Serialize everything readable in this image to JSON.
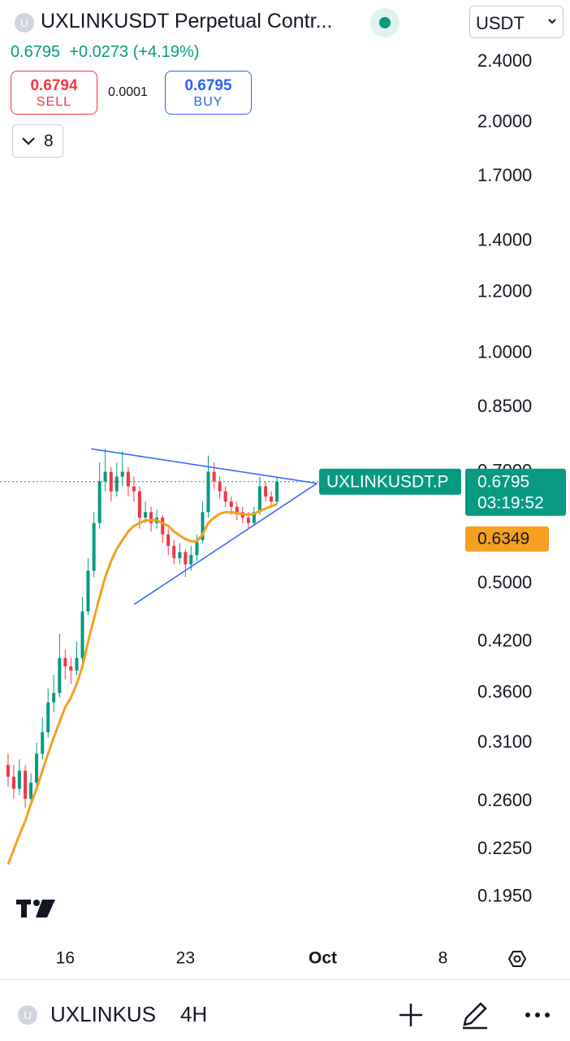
{
  "header": {
    "icon_letter": "U",
    "title": "UXLINKUSDT Perpetual Contr...",
    "currency": "USDT",
    "price": "0.6795",
    "change": "+0.0273",
    "change_pct": "(+4.19%)",
    "sell_price": "0.6794",
    "sell_label": "SELL",
    "spread": "0.0001",
    "buy_price": "0.6795",
    "buy_label": "BUY",
    "indicator_count": "8"
  },
  "bottom_bar": {
    "symbol": "UXLINKUS",
    "interval": "4H"
  },
  "chart_data": {
    "type": "candlestick",
    "log_scale": true,
    "xlim": [
      12.2,
      45.4
    ],
    "ylim": [
      0.17,
      2.89
    ],
    "xticks": [
      16,
      23,
      {
        "value": 31,
        "label": "Oct"
      },
      {
        "value": 38,
        "label": "8"
      }
    ],
    "yticks": [
      {
        "value": 2.4,
        "label": "2.4000"
      },
      {
        "value": 2.0,
        "label": "2.0000"
      },
      {
        "value": 1.7,
        "label": "1.7000"
      },
      {
        "value": 1.4,
        "label": "1.4000"
      },
      {
        "value": 1.2,
        "label": "1.2000"
      },
      {
        "value": 1.0,
        "label": "1.0000"
      },
      {
        "value": 0.85,
        "label": "0.8500"
      },
      {
        "value": 0.7,
        "label": "0.7000"
      },
      {
        "value": 0.5,
        "label": "0.5000"
      },
      {
        "value": 0.42,
        "label": "0.4200"
      },
      {
        "value": 0.36,
        "label": "0.3600"
      },
      {
        "value": 0.31,
        "label": "0.3100"
      },
      {
        "value": 0.26,
        "label": "0.2600"
      },
      {
        "value": 0.225,
        "label": "0.2250"
      },
      {
        "value": 0.195,
        "label": "0.1950"
      }
    ],
    "up_color": "#089981",
    "down_color": "#f23645",
    "x": [
      12.67,
      13.0,
      13.33,
      13.67,
      14.0,
      14.33,
      14.67,
      15.0,
      15.33,
      15.67,
      16.0,
      16.33,
      16.67,
      17.0,
      17.33,
      17.67,
      18.0,
      18.33,
      18.67,
      19.0,
      19.33,
      19.67,
      20.0,
      20.33,
      20.67,
      21.0,
      21.33,
      21.67,
      22.0,
      22.33,
      22.67,
      23.0,
      23.33,
      23.67,
      24.0,
      24.33,
      24.67,
      25.0,
      25.33,
      25.67,
      26.0,
      26.33,
      26.67,
      27.0,
      27.33,
      27.67,
      28.0,
      28.33
    ],
    "open": [
      0.29,
      0.28,
      0.27,
      0.285,
      0.262,
      0.275,
      0.3,
      0.32,
      0.35,
      0.36,
      0.4,
      0.39,
      0.385,
      0.4,
      0.46,
      0.52,
      0.6,
      0.68,
      0.7,
      0.66,
      0.69,
      0.7,
      0.67,
      0.66,
      0.61,
      0.62,
      0.6,
      0.61,
      0.58,
      0.56,
      0.54,
      0.55,
      0.53,
      0.545,
      0.57,
      0.62,
      0.7,
      0.68,
      0.66,
      0.64,
      0.63,
      0.62,
      0.61,
      0.6,
      0.62,
      0.67,
      0.65,
      0.64
    ],
    "high": [
      0.3,
      0.29,
      0.295,
      0.29,
      0.283,
      0.31,
      0.335,
      0.365,
      0.38,
      0.43,
      0.41,
      0.4,
      0.42,
      0.48,
      0.54,
      0.62,
      0.72,
      0.75,
      0.71,
      0.72,
      0.745,
      0.71,
      0.69,
      0.67,
      0.64,
      0.63,
      0.625,
      0.615,
      0.59,
      0.57,
      0.565,
      0.555,
      0.56,
      0.58,
      0.64,
      0.735,
      0.72,
      0.69,
      0.67,
      0.65,
      0.64,
      0.63,
      0.62,
      0.63,
      0.69,
      0.68,
      0.66,
      0.69
    ],
    "low": [
      0.272,
      0.262,
      0.265,
      0.255,
      0.258,
      0.27,
      0.295,
      0.315,
      0.34,
      0.355,
      0.375,
      0.37,
      0.38,
      0.395,
      0.455,
      0.51,
      0.59,
      0.66,
      0.64,
      0.65,
      0.67,
      0.65,
      0.64,
      0.59,
      0.6,
      0.585,
      0.59,
      0.565,
      0.545,
      0.53,
      0.53,
      0.51,
      0.52,
      0.535,
      0.565,
      0.61,
      0.665,
      0.645,
      0.63,
      0.615,
      0.605,
      0.6,
      0.59,
      0.595,
      0.615,
      0.64,
      0.63,
      0.635
    ],
    "close": [
      0.28,
      0.27,
      0.285,
      0.262,
      0.275,
      0.3,
      0.32,
      0.35,
      0.36,
      0.4,
      0.39,
      0.385,
      0.4,
      0.46,
      0.52,
      0.6,
      0.68,
      0.7,
      0.66,
      0.69,
      0.7,
      0.67,
      0.66,
      0.61,
      0.62,
      0.6,
      0.61,
      0.58,
      0.56,
      0.54,
      0.55,
      0.53,
      0.545,
      0.57,
      0.62,
      0.7,
      0.68,
      0.66,
      0.64,
      0.63,
      0.62,
      0.61,
      0.6,
      0.62,
      0.67,
      0.65,
      0.64,
      0.6795
    ],
    "ma": {
      "color": "#f5a01f",
      "values": [
        0.215,
        0.225,
        0.235,
        0.245,
        0.258,
        0.27,
        0.285,
        0.3,
        0.315,
        0.33,
        0.345,
        0.355,
        0.37,
        0.39,
        0.42,
        0.45,
        0.48,
        0.51,
        0.535,
        0.555,
        0.57,
        0.585,
        0.595,
        0.6,
        0.605,
        0.605,
        0.605,
        0.6,
        0.595,
        0.585,
        0.578,
        0.572,
        0.568,
        0.568,
        0.58,
        0.6,
        0.61,
        0.617,
        0.62,
        0.62,
        0.618,
        0.616,
        0.615,
        0.617,
        0.622,
        0.627,
        0.631,
        0.6349
      ]
    },
    "trendlines": [
      {
        "color": "#2962ff",
        "x": [
          17.51,
          30.66
        ],
        "values": [
          0.75,
          0.676
        ]
      },
      {
        "color": "#2962ff",
        "x": [
          20.02,
          30.66
        ],
        "values": [
          0.47,
          0.676
        ]
      }
    ],
    "last_price": {
      "label": "UXLINKUSDT.P",
      "countdown": "03:19:52",
      "color": "#089981"
    }
  }
}
